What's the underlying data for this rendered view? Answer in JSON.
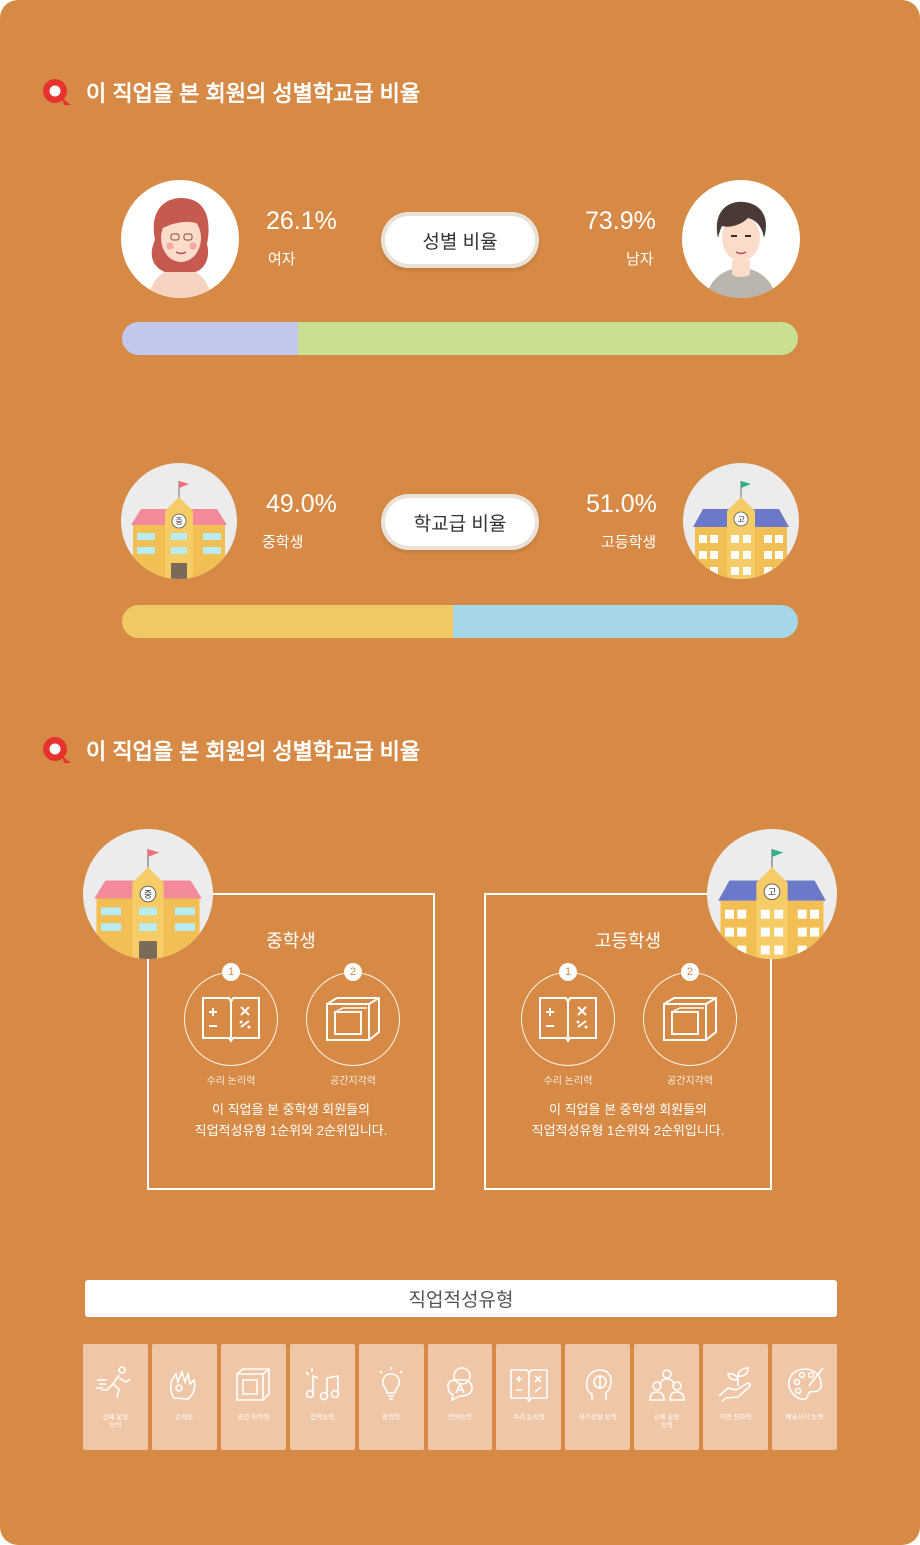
{
  "section1": {
    "title": "이 직업을 본 회원의 성별학교급 비율",
    "gender": {
      "pill_label": "성별 비율",
      "female": {
        "percent": "26.1%",
        "label": "여자",
        "value": 26.1
      },
      "male": {
        "percent": "73.9%",
        "label": "남자",
        "value": 73.9
      },
      "colors": {
        "female": "#c2c8ed",
        "male": "#c8e08f"
      }
    },
    "school": {
      "pill_label": "학교급 비율",
      "middle": {
        "percent": "49.0%",
        "label": "중학생",
        "value": 49.0,
        "badge": "중"
      },
      "high": {
        "percent": "51.0%",
        "label": "고등학생",
        "value": 51.0,
        "badge": "고"
      },
      "colors": {
        "middle": "#f0c864",
        "high": "#a5d7e6"
      }
    }
  },
  "section2": {
    "title": "이 직업을 본 회원의 성별학교급 비율",
    "middle": {
      "badge": "중",
      "title": "중학생",
      "rank1": {
        "num": "1",
        "caption": "수리 논리력",
        "icon": "math-book-icon"
      },
      "rank2": {
        "num": "2",
        "caption": "공간지각력",
        "icon": "cube-frame-icon"
      },
      "desc_line1": "이 직업을 본 중학생 회원들의",
      "desc_line2": "직업적성유형 1순위와 2순위입니다."
    },
    "high": {
      "badge": "고",
      "title": "고등학생",
      "rank1": {
        "num": "1",
        "caption": "수리 논리력",
        "icon": "math-book-icon"
      },
      "rank2": {
        "num": "2",
        "caption": "공간지각력",
        "icon": "cube-frame-icon"
      },
      "desc_line1": "이 직업을 본 중학생 회원들의",
      "desc_line2": "직업적성유형 1순위와 2순위입니다."
    }
  },
  "aptitude": {
    "header": "직업적성유형",
    "tiles": [
      {
        "line1": "신체 운동",
        "line2": "능력",
        "icon": "runner-icon"
      },
      {
        "line1": "손재능",
        "line2": "",
        "icon": "hand-icon"
      },
      {
        "line1": "공간 지각력",
        "line2": "",
        "icon": "cube-frame-icon"
      },
      {
        "line1": "음악능력",
        "line2": "",
        "icon": "music-notes-icon"
      },
      {
        "line1": "창의력",
        "line2": "",
        "icon": "lightbulb-icon"
      },
      {
        "line1": "언어능력",
        "line2": "",
        "icon": "language-icon"
      },
      {
        "line1": "수리 논리력",
        "line2": "",
        "icon": "math-book-icon"
      },
      {
        "line1": "자기성찰 능력",
        "line2": "",
        "icon": "head-icon"
      },
      {
        "line1": "신체 운동",
        "line2": "능력",
        "icon": "people-icon"
      },
      {
        "line1": "자연 친화력",
        "line2": "",
        "icon": "plant-hand-icon"
      },
      {
        "line1": "예술시각 능력",
        "line2": "",
        "icon": "palette-icon"
      }
    ]
  }
}
